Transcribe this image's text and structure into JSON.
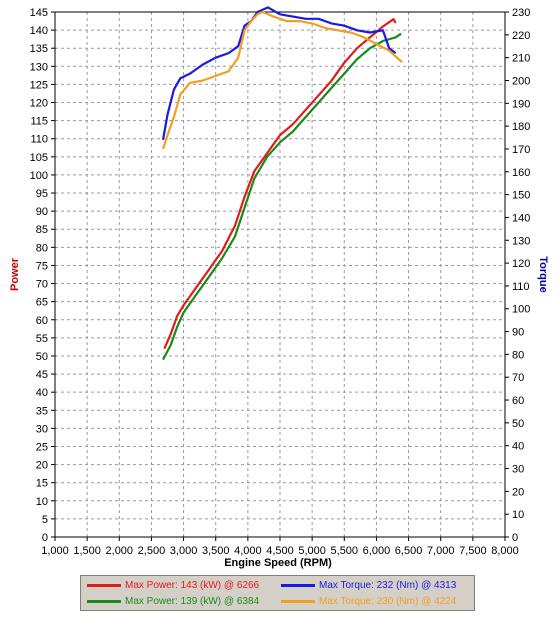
{
  "chart_data": {
    "type": "line",
    "xlabel": "Engine Speed (RPM)",
    "ylabel_left": "Power",
    "ylabel_right": "Torque",
    "x_ticks": [
      "1,000",
      "1,500",
      "2,000",
      "2,500",
      "3,000",
      "3,500",
      "4,000",
      "4,500",
      "5,000",
      "5,500",
      "6,000",
      "6,500",
      "7,000",
      "7,500",
      "8,000"
    ],
    "xlim": [
      1000,
      8000
    ],
    "ylim_left": [
      0,
      145
    ],
    "ylim_right": [
      0,
      230
    ],
    "grid": true,
    "colors": {
      "left_label": "#cc0000",
      "right_label": "#0000aa"
    },
    "series": [
      {
        "name": "Max Power: 143 (kW) @ 6266",
        "axis": "left",
        "color": "#e31a1a",
        "x": [
          2700,
          2800,
          2900,
          3000,
          3200,
          3400,
          3600,
          3800,
          3950,
          4100,
          4300,
          4500,
          4700,
          4900,
          5100,
          5300,
          5500,
          5700,
          5900,
          6100,
          6266,
          6300
        ],
        "y": [
          52,
          56,
          61,
          64,
          69,
          74,
          79,
          86,
          94,
          101,
          106,
          111,
          114,
          118,
          122,
          126,
          131,
          135,
          138,
          141,
          143,
          142
        ]
      },
      {
        "name": "Max Power: 139 (kW) @ 6384",
        "axis": "left",
        "color": "#1a8a1a",
        "x": [
          2680,
          2800,
          2900,
          3000,
          3200,
          3400,
          3600,
          3800,
          3950,
          4100,
          4300,
          4500,
          4700,
          4900,
          5100,
          5300,
          5500,
          5700,
          5900,
          6100,
          6300,
          6384
        ],
        "y": [
          49,
          53,
          58,
          62,
          67,
          72,
          77,
          83,
          91,
          99,
          105,
          109,
          112,
          116,
          120,
          124,
          128,
          132,
          135,
          137,
          138,
          139
        ]
      },
      {
        "name": "Max Torque: 232 (Nm) @ 4313",
        "axis": "right",
        "color": "#1a1ae3",
        "x": [
          2680,
          2750,
          2850,
          2950,
          3100,
          3300,
          3500,
          3700,
          3850,
          3950,
          4050,
          4150,
          4313,
          4500,
          4700,
          4900,
          5100,
          5300,
          5500,
          5700,
          5900,
          6100,
          6200,
          6300
        ],
        "y": [
          174,
          185,
          196,
          201,
          203,
          207,
          210,
          212,
          215,
          224,
          226,
          230,
          232,
          229,
          228,
          227,
          227,
          225,
          224,
          222,
          221,
          222,
          214,
          212
        ]
      },
      {
        "name": "Max Torque: 230 (Nm) @ 4224",
        "axis": "right",
        "color": "#f0a020",
        "x": [
          2680,
          2750,
          2850,
          2950,
          3100,
          3300,
          3500,
          3700,
          3850,
          3950,
          4050,
          4150,
          4224,
          4400,
          4600,
          4800,
          5000,
          5200,
          5400,
          5600,
          5800,
          6000,
          6200,
          6400
        ],
        "y": [
          170,
          176,
          184,
          194,
          199,
          200,
          202,
          204,
          210,
          222,
          226,
          229,
          230,
          228,
          226,
          226,
          225,
          223,
          222,
          221,
          219,
          216,
          213,
          208
        ]
      }
    ]
  }
}
